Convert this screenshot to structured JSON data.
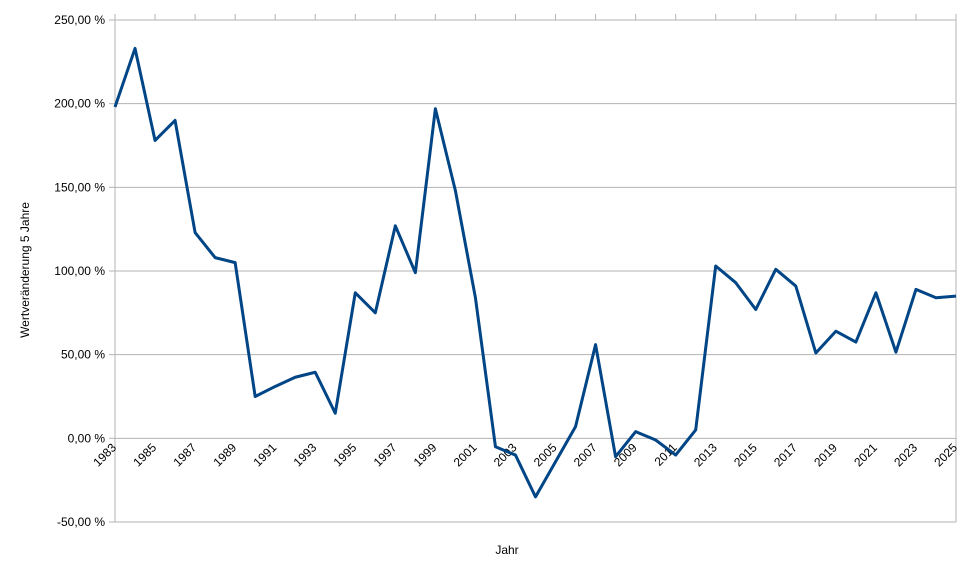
{
  "chart_data": {
    "type": "line",
    "x_label": "Jahr",
    "y_label": "Wertveränderung 5 Jahre",
    "x": [
      1983,
      1984,
      1985,
      1986,
      1987,
      1988,
      1989,
      1990,
      1991,
      1992,
      1993,
      1994,
      1995,
      1996,
      1997,
      1998,
      1999,
      2000,
      2001,
      2002,
      2003,
      2004,
      2005,
      2006,
      2007,
      2008,
      2009,
      2010,
      2011,
      2012,
      2013,
      2014,
      2015,
      2016,
      2017,
      2018,
      2019,
      2020,
      2021,
      2022,
      2023,
      2024,
      2025
    ],
    "series": [
      {
        "name": "Wertveränderung 5 Jahre",
        "color": "#004586",
        "values": [
          198,
          233,
          178,
          190,
          123,
          108,
          105,
          25,
          31,
          36.5,
          39.5,
          15,
          87,
          75,
          127,
          99,
          197,
          148,
          84,
          -5,
          -10,
          -35,
          -14,
          7,
          56,
          -11,
          4,
          -1,
          -10,
          5,
          103,
          93,
          77,
          101,
          91,
          51,
          64,
          57.5,
          87,
          51.5,
          89,
          84,
          85
        ]
      }
    ],
    "xlim": [
      1983,
      2025
    ],
    "xticks": [
      1983,
      1985,
      1987,
      1989,
      1991,
      1993,
      1995,
      1997,
      1999,
      2001,
      2003,
      2005,
      2007,
      2009,
      2011,
      2013,
      2015,
      2017,
      2019,
      2021,
      2023,
      2025
    ],
    "ylim": [
      -50,
      250
    ],
    "yticks": [
      {
        "value": -50,
        "label": "-50,00 %"
      },
      {
        "value": 0,
        "label": "0,00 %"
      },
      {
        "value": 50,
        "label": "50,00 %"
      },
      {
        "value": 100,
        "label": "100,00 %"
      },
      {
        "value": 150,
        "label": "150,00 %"
      },
      {
        "value": 200,
        "label": "200,00 %"
      },
      {
        "value": 250,
        "label": "250,00 %"
      }
    ],
    "grid": true
  }
}
